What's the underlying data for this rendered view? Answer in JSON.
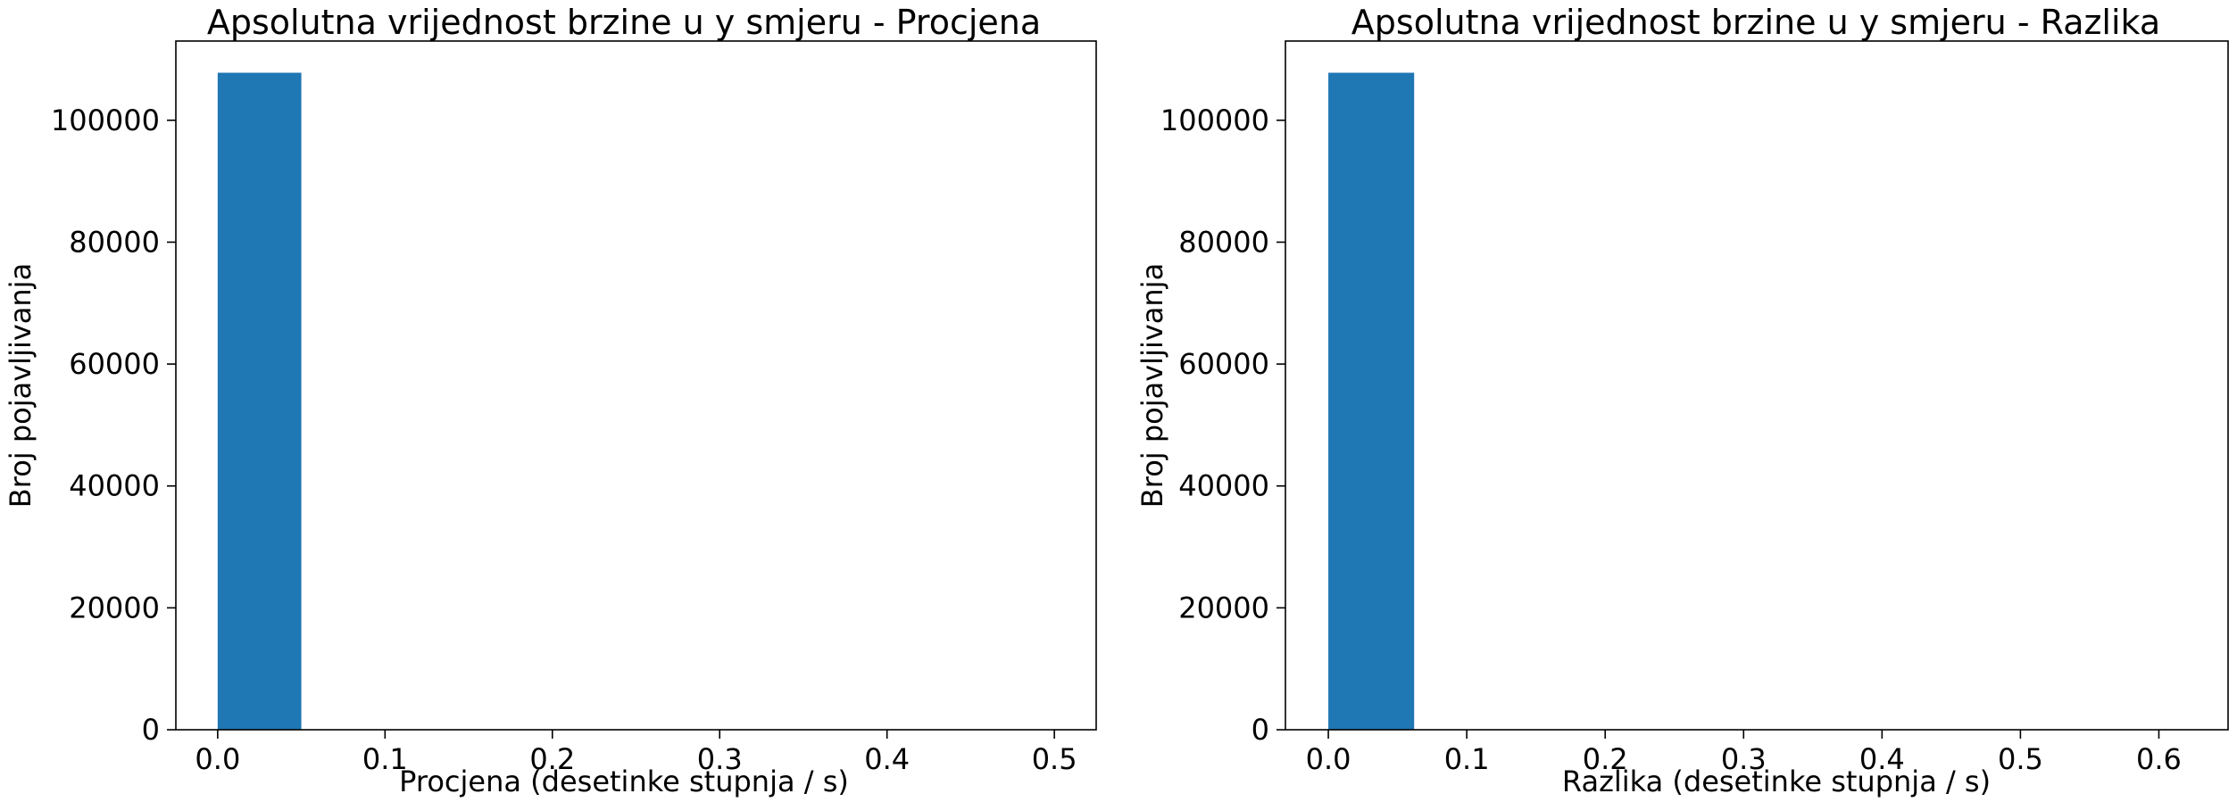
{
  "chart_data": [
    {
      "type": "bar",
      "title": "Apsolutna vrijednost brzine u y smjeru - Procjena",
      "xlabel": "Procjena (desetinke stupnja / s)",
      "ylabel": "Broj pojavljivanja",
      "xlim": [
        -0.025,
        0.525
      ],
      "ylim": [
        0,
        113000
      ],
      "xticks": [
        0.0,
        0.1,
        0.2,
        0.3,
        0.4,
        0.5
      ],
      "xtick_labels": [
        "0.0",
        "0.1",
        "0.2",
        "0.3",
        "0.4",
        "0.5"
      ],
      "yticks": [
        0,
        20000,
        40000,
        60000,
        80000,
        100000
      ],
      "ytick_labels": [
        "0",
        "20000",
        "40000",
        "60000",
        "80000",
        "100000"
      ],
      "bins": [
        {
          "x0": 0.0,
          "x1": 0.05,
          "count": 107800
        },
        {
          "x0": 0.05,
          "x1": 0.1,
          "count": 0
        },
        {
          "x0": 0.1,
          "x1": 0.15,
          "count": 0
        },
        {
          "x0": 0.15,
          "x1": 0.2,
          "count": 0
        },
        {
          "x0": 0.2,
          "x1": 0.25,
          "count": 0
        },
        {
          "x0": 0.25,
          "x1": 0.3,
          "count": 0
        },
        {
          "x0": 0.3,
          "x1": 0.35,
          "count": 0
        },
        {
          "x0": 0.35,
          "x1": 0.4,
          "count": 0
        },
        {
          "x0": 0.4,
          "x1": 0.45,
          "count": 0
        },
        {
          "x0": 0.45,
          "x1": 0.5,
          "count": 0
        }
      ],
      "color": "#1f77b4",
      "grid": false
    },
    {
      "type": "bar",
      "title": "Apsolutna vrijednost brzine u y smjeru - Razlika",
      "xlabel": "Razlika (desetinke stupnja / s)",
      "ylabel": "Broj pojavljivanja",
      "xlim": [
        -0.031,
        0.65
      ],
      "ylim": [
        0,
        113000
      ],
      "xticks": [
        0.0,
        0.1,
        0.2,
        0.3,
        0.4,
        0.5,
        0.6
      ],
      "xtick_labels": [
        "0.0",
        "0.1",
        "0.2",
        "0.3",
        "0.4",
        "0.5",
        "0.6"
      ],
      "yticks": [
        0,
        20000,
        40000,
        60000,
        80000,
        100000
      ],
      "ytick_labels": [
        "0",
        "20000",
        "40000",
        "60000",
        "80000",
        "100000"
      ],
      "bins": [
        {
          "x0": 0.0,
          "x1": 0.062,
          "count": 107800
        },
        {
          "x0": 0.062,
          "x1": 0.124,
          "count": 0
        },
        {
          "x0": 0.124,
          "x1": 0.186,
          "count": 0
        },
        {
          "x0": 0.186,
          "x1": 0.248,
          "count": 0
        },
        {
          "x0": 0.248,
          "x1": 0.31,
          "count": 0
        },
        {
          "x0": 0.31,
          "x1": 0.372,
          "count": 0
        },
        {
          "x0": 0.372,
          "x1": 0.434,
          "count": 0
        },
        {
          "x0": 0.434,
          "x1": 0.496,
          "count": 0
        },
        {
          "x0": 0.496,
          "x1": 0.558,
          "count": 0
        },
        {
          "x0": 0.558,
          "x1": 0.62,
          "count": 0
        }
      ],
      "color": "#1f77b4",
      "grid": false
    }
  ]
}
